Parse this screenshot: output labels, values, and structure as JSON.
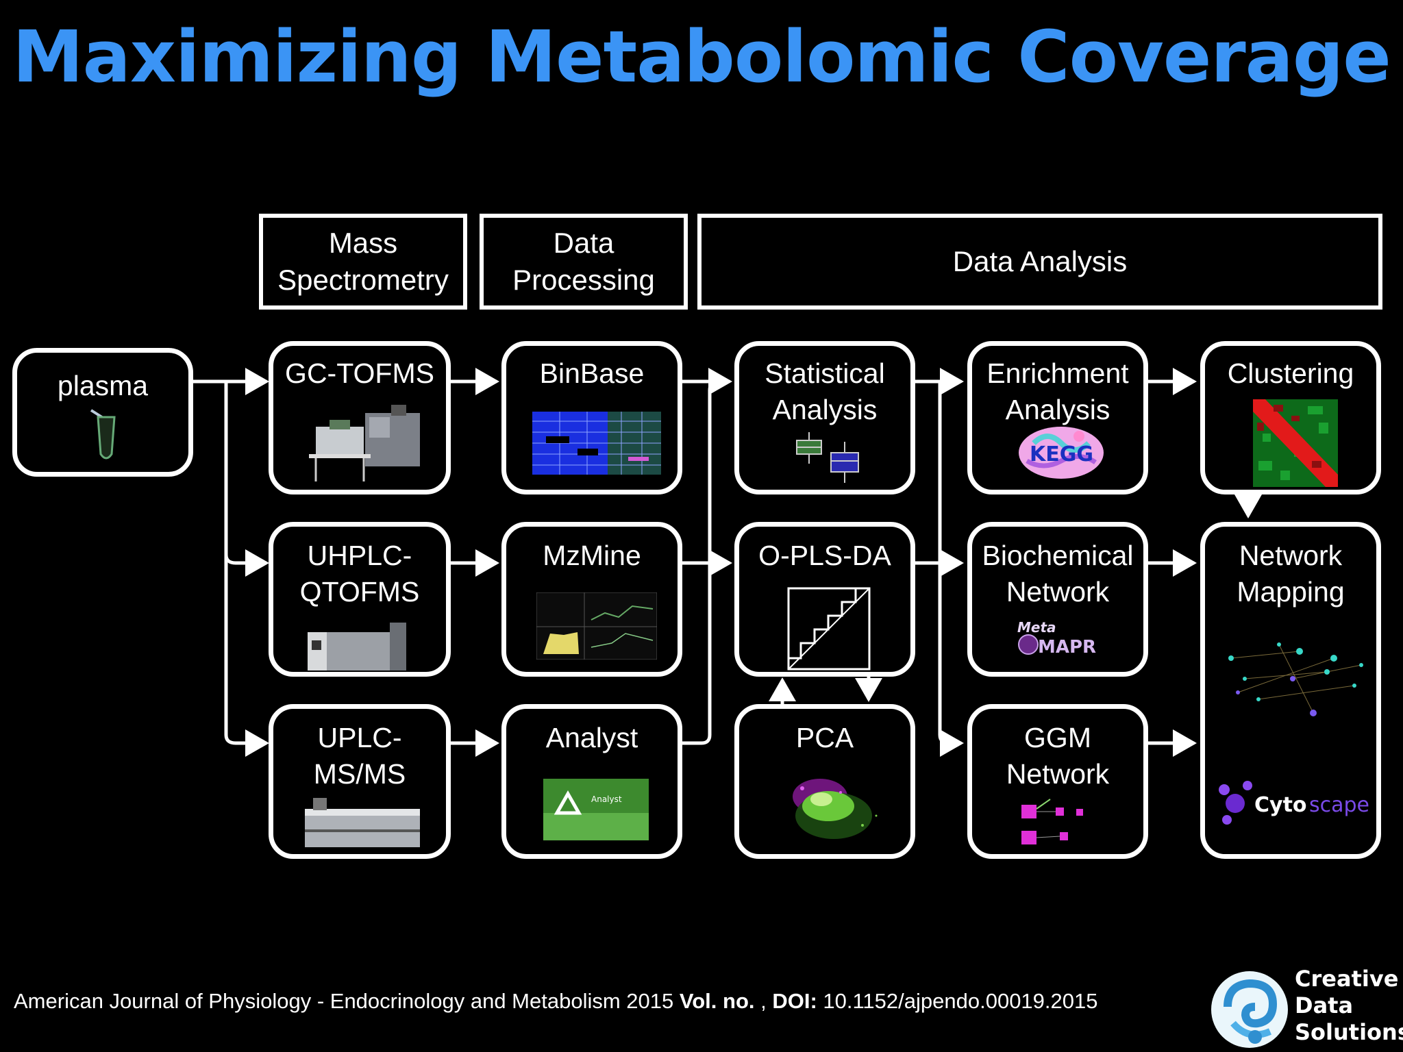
{
  "title": "Maximizing Metabolomic Coverage",
  "headers": {
    "mass_spectrometry": "Mass\nSpectrometry",
    "data_processing": "Data\nProcessing",
    "data_analysis": "Data Analysis"
  },
  "nodes": {
    "plasma": "plasma",
    "gc_tofms": "GC-TOFMS",
    "uhplc_qtofms": "UHPLC-\nQTOFMS",
    "uplc_msms": "UPLC-\nMS/MS",
    "binbase": "BinBase",
    "mzmine": "MzMine",
    "analyst": "Analyst",
    "statistical_analysis": "Statistical\nAnalysis",
    "opls_da": "O-PLS-DA",
    "pca": "PCA",
    "enrichment_analysis": "Enrichment\nAnalysis",
    "biochemical_network": "Biochemical\nNetwork",
    "ggm_network": "GGM\nNetwork",
    "clustering": "Clustering",
    "network_mapping": "Network\nMapping"
  },
  "logos": {
    "kegg": "KEGG",
    "metamapr_top": "Meta",
    "metamapr_bottom": "MAPR",
    "cytoscape_a": "Cyto",
    "cytoscape_b": "scape",
    "analyst_text": "Analyst"
  },
  "citation": {
    "journal": "American Journal of Physiology - Endocrinology and Metabolism 2015 ",
    "vol_label": "Vol. no.",
    "sep": " , ",
    "doi_label": "DOI:",
    "doi": " 10.1152/ajpendo.00019.2015"
  },
  "brand": {
    "line1": "Creative",
    "line2": "Data",
    "line3": "Solutions"
  },
  "colors": {
    "title": "#3b94f5",
    "background": "#000000",
    "box_border": "#ffffff"
  }
}
